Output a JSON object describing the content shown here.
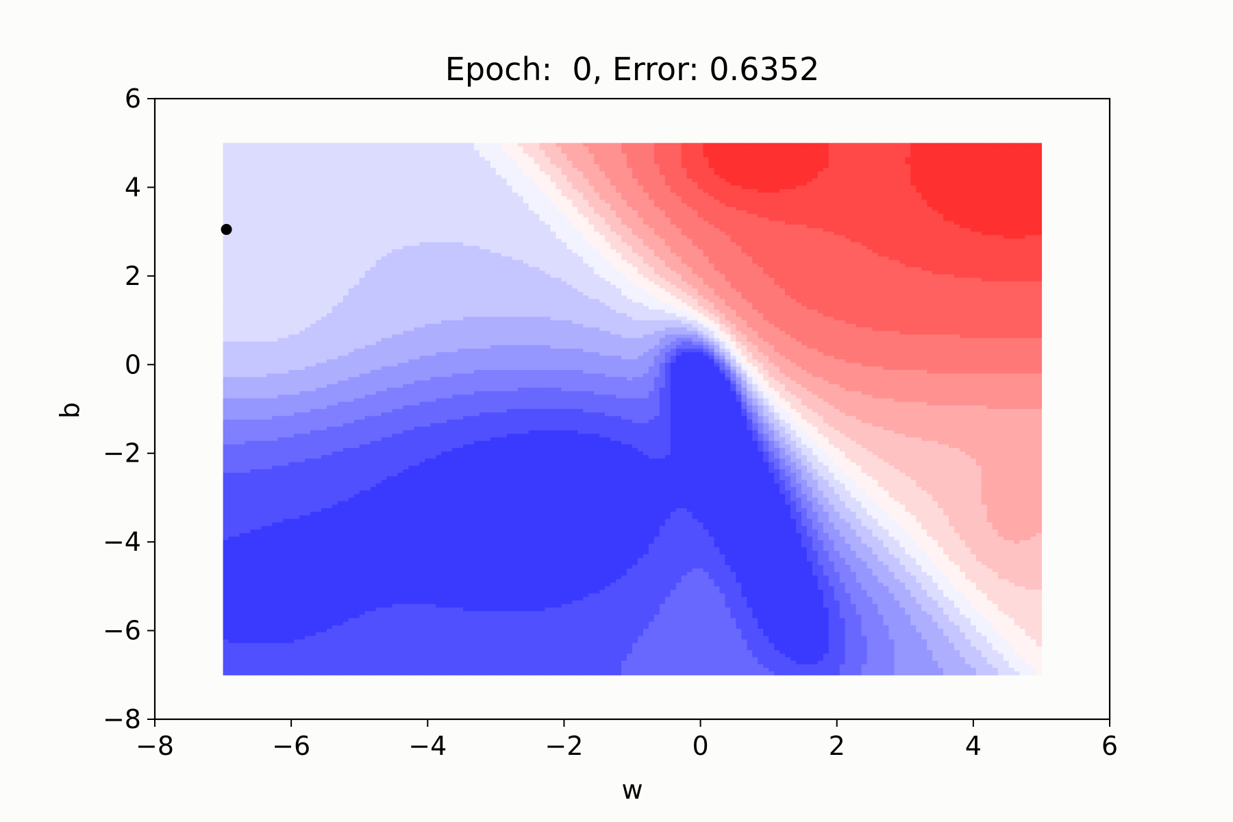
{
  "chart_data": {
    "type": "contour",
    "title": "Epoch:  0, Error: 0.6352",
    "xlabel": "w",
    "ylabel": "b",
    "xlim": [
      -8,
      6
    ],
    "ylim": [
      -8,
      6
    ],
    "xticks": [
      {
        "value": -8,
        "label": "−8"
      },
      {
        "value": -6,
        "label": "−6"
      },
      {
        "value": -4,
        "label": "−4"
      },
      {
        "value": -2,
        "label": "−2"
      },
      {
        "value": 0,
        "label": "0"
      },
      {
        "value": 2,
        "label": "2"
      },
      {
        "value": 4,
        "label": "4"
      },
      {
        "value": 6,
        "label": "6"
      }
    ],
    "yticks": [
      {
        "value": -8,
        "label": "−8"
      },
      {
        "value": -6,
        "label": "−6"
      },
      {
        "value": -4,
        "label": "−4"
      },
      {
        "value": -2,
        "label": "−2"
      },
      {
        "value": 0,
        "label": "0"
      },
      {
        "value": 2,
        "label": "2"
      },
      {
        "value": 4,
        "label": "4"
      },
      {
        "value": 6,
        "label": "6"
      }
    ],
    "contour_region": {
      "w": [
        -7,
        5
      ],
      "b": [
        -7,
        5
      ]
    },
    "colormap": "bwr",
    "grid": false,
    "current_point": {
      "w": -6.95,
      "b": 3.05
    },
    "colors": {
      "low": "#3a3aff",
      "mid": "#ffffff",
      "high": "#ff3030",
      "point": "#000000",
      "axes": "#000000"
    }
  }
}
